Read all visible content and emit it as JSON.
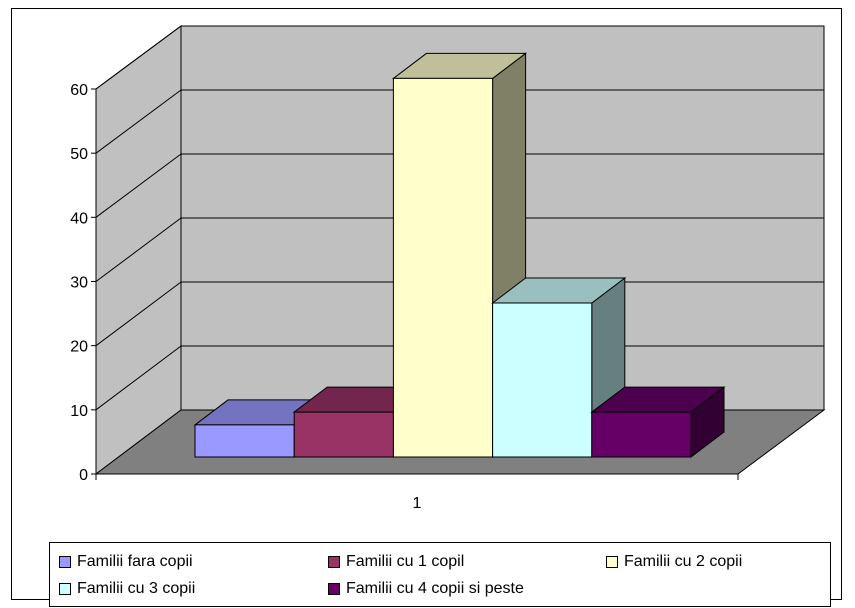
{
  "chart_data": {
    "type": "bar",
    "style": "3d-clustered-column",
    "categories": [
      "1"
    ],
    "series": [
      {
        "name": "Familii fara copii",
        "values": [
          5
        ],
        "color": "#9999FF"
      },
      {
        "name": "Familii cu 1 copil",
        "values": [
          7
        ],
        "color": "#993366"
      },
      {
        "name": "Familii cu 2 copii",
        "values": [
          59
        ],
        "color": "#FFFFCC"
      },
      {
        "name": "Familii cu 3 copii",
        "values": [
          24
        ],
        "color": "#CCFFFF"
      },
      {
        "name": "Familii cu 4 copii si peste",
        "values": [
          7
        ],
        "color": "#660066"
      }
    ],
    "ylim": [
      0,
      60
    ],
    "yticks": [
      "0",
      "10",
      "20",
      "30",
      "40",
      "50",
      "60"
    ],
    "grid": true,
    "legend_position": "bottom",
    "wall_color": "#C0C0C0",
    "floor_color": "#808080"
  }
}
